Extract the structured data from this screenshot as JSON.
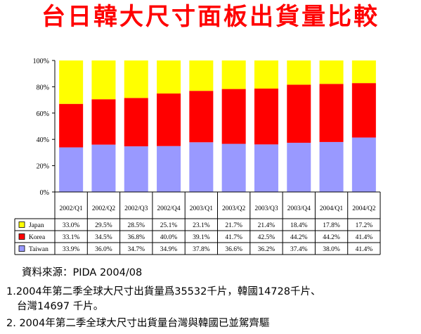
{
  "title": "台日韓大尺寸面板出貨量比較",
  "chart_data": {
    "type": "bar",
    "stacked": true,
    "normalized": true,
    "categories": [
      "2002/Q1",
      "2002/Q2",
      "2002/Q3",
      "2002/Q4",
      "2003/Q1",
      "2003/Q2",
      "2003/Q3",
      "2003/Q4",
      "2004/Q1",
      "2004/Q2"
    ],
    "series": [
      {
        "name": "Taiwan",
        "values": [
          33.9,
          36.0,
          34.7,
          34.9,
          37.8,
          36.6,
          36.2,
          37.4,
          38.0,
          41.4
        ],
        "labels": [
          "33.9%",
          "36.0%",
          "34.7%",
          "34.9%",
          "37.8%",
          "36.6%",
          "36.2%",
          "37.4%",
          "38.0%",
          "41.4%"
        ]
      },
      {
        "name": "Korea",
        "values": [
          33.1,
          34.5,
          36.8,
          40.0,
          39.1,
          41.7,
          42.5,
          44.2,
          44.2,
          41.4
        ],
        "labels": [
          "33.1%",
          "34.5%",
          "36.8%",
          "40.0%",
          "39.1%",
          "41.7%",
          "42.5%",
          "44.2%",
          "44.2%",
          "41.4%"
        ]
      },
      {
        "name": "Japan",
        "values": [
          33.0,
          29.5,
          28.5,
          25.1,
          23.1,
          21.7,
          21.4,
          18.4,
          17.8,
          17.2
        ],
        "labels": [
          "33.0%",
          "29.5%",
          "28.5%",
          "25.1%",
          "23.1%",
          "21.7%",
          "21.4%",
          "18.4%",
          "17.8%",
          "17.2%"
        ]
      }
    ],
    "colors": {
      "Japan": "#ffff00",
      "Korea": "#ff0000",
      "Taiwan": "#9999ff"
    },
    "ylim": [
      0,
      100
    ],
    "yticks": [
      "0%",
      "20%",
      "40%",
      "60%",
      "80%",
      "100%"
    ],
    "grid": false,
    "legend": "data-table",
    "table_row_order": [
      "Japan",
      "Korea",
      "Taiwan"
    ]
  },
  "source": "資料來源：PIDA 2004/08",
  "notes": {
    "line1": "1.2004年第二季全球大尺寸出貨量爲35532千片，韓國14728千片、",
    "line1b": "台灣14697 千片。",
    "line2": "2. 2004年第二季全球大尺寸出貨量台灣與韓國已並駕齊驅"
  }
}
